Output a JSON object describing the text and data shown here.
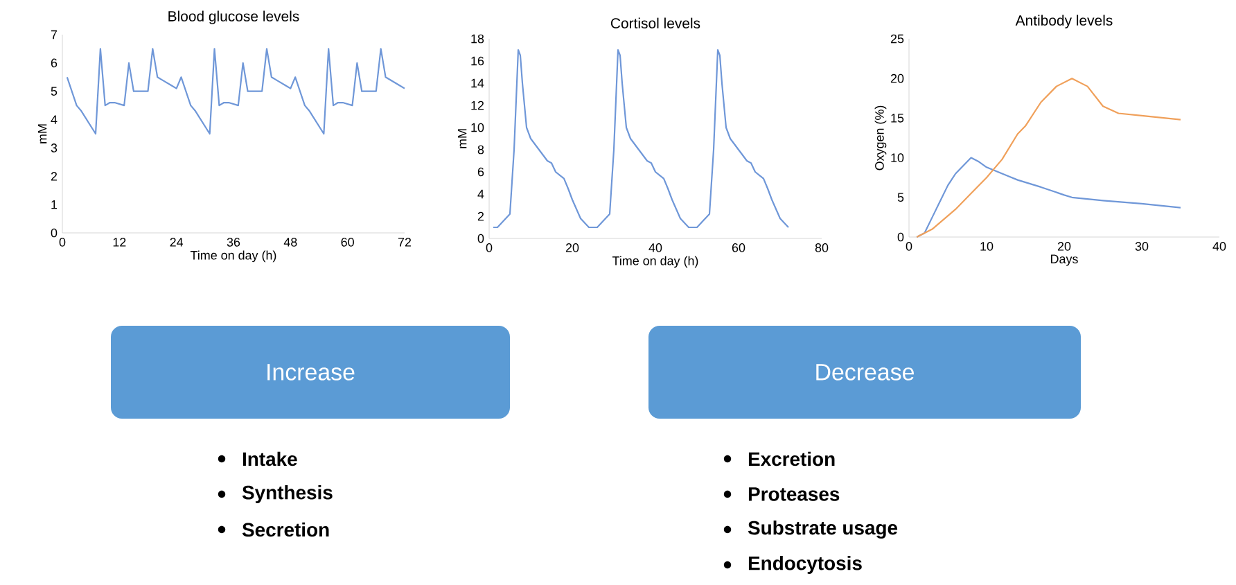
{
  "chart_data": [
    {
      "type": "line",
      "title": "Blood glucose levels",
      "xlabel": "Time on day (h)",
      "ylabel": "mM",
      "xlim": [
        0,
        72
      ],
      "xticks": [
        0,
        12,
        24,
        36,
        48,
        60,
        72
      ],
      "ylim": [
        0,
        7
      ],
      "yticks": [
        0,
        1,
        2,
        3,
        4,
        5,
        6,
        7
      ],
      "series": [
        {
          "color": "#6f97d8",
          "x": [
            1,
            3,
            4,
            7,
            8,
            9,
            10,
            11,
            13,
            14,
            15,
            18,
            19,
            20,
            21,
            23,
            24,
            25,
            27,
            28,
            31,
            32,
            33,
            34,
            35,
            37,
            38,
            39,
            42,
            43,
            44,
            45,
            47,
            48,
            49,
            51,
            52,
            55,
            56,
            57,
            58,
            59,
            61,
            62,
            63,
            66,
            67,
            68,
            69,
            71,
            72
          ],
          "values": [
            5.5,
            4.5,
            4.3,
            3.5,
            6.5,
            4.5,
            4.6,
            4.6,
            4.5,
            6.0,
            5.0,
            5.0,
            6.5,
            5.5,
            5.4,
            5.2,
            5.1,
            5.5,
            4.5,
            4.3,
            3.5,
            6.5,
            4.5,
            4.6,
            4.6,
            4.5,
            6.0,
            5.0,
            5.0,
            6.5,
            5.5,
            5.4,
            5.2,
            5.1,
            5.5,
            4.5,
            4.3,
            3.5,
            6.5,
            4.5,
            4.6,
            4.6,
            4.5,
            6.0,
            5.0,
            5.0,
            6.5,
            5.5,
            5.4,
            5.2,
            5.1
          ]
        }
      ]
    },
    {
      "type": "line",
      "title": "Cortisol levels",
      "xlabel": "Time on day (h)",
      "ylabel": "mM",
      "xlim": [
        0,
        80
      ],
      "xticks": [
        0,
        20,
        40,
        60,
        80
      ],
      "ylim": [
        0,
        18
      ],
      "yticks": [
        0,
        2,
        4,
        6,
        8,
        10,
        12,
        14,
        16,
        18
      ],
      "series": [
        {
          "color": "#6f97d8",
          "x": [
            1,
            2,
            5,
            6,
            7,
            7.5,
            8,
            9,
            10,
            12,
            14,
            15,
            16,
            17,
            18,
            19,
            20,
            22,
            24,
            26,
            29,
            30,
            31,
            31.5,
            32,
            33,
            34,
            36,
            38,
            39,
            40,
            41,
            42,
            43,
            44,
            46,
            48,
            50,
            53,
            54,
            55,
            55.5,
            56,
            57,
            58,
            60,
            62,
            63,
            64,
            65,
            66,
            67,
            68,
            70,
            72
          ],
          "values": [
            1,
            1,
            2.2,
            8,
            17,
            16.5,
            14,
            10,
            9,
            8,
            7,
            6.8,
            6,
            5.7,
            5.4,
            4.5,
            3.5,
            1.8,
            1,
            1,
            2.2,
            8,
            17,
            16.5,
            14,
            10,
            9,
            8,
            7,
            6.8,
            6,
            5.7,
            5.4,
            4.5,
            3.5,
            1.8,
            1,
            1,
            2.2,
            8,
            17,
            16.5,
            14,
            10,
            9,
            8,
            7,
            6.8,
            6,
            5.7,
            5.4,
            4.5,
            3.5,
            1.8,
            1
          ]
        }
      ]
    },
    {
      "type": "line",
      "title": "Antibody levels",
      "xlabel": "Days",
      "ylabel": "Oxygen (%)",
      "xlim": [
        0,
        40
      ],
      "xticks": [
        0,
        10,
        20,
        30,
        40
      ],
      "ylim": [
        0,
        25
      ],
      "yticks": [
        0,
        5,
        10,
        15,
        20,
        25
      ],
      "series": [
        {
          "color": "#6f97d8",
          "x": [
            1,
            2,
            3,
            4,
            5,
            6,
            7,
            8,
            9,
            10,
            12,
            14,
            17,
            20,
            21,
            25,
            30,
            35
          ],
          "values": [
            0,
            0.5,
            2.5,
            4.5,
            6.5,
            8,
            9,
            10,
            9.5,
            8.8,
            8,
            7.2,
            6.3,
            5.3,
            5,
            4.6,
            4.2,
            3.7
          ]
        },
        {
          "color": "#f0a05a",
          "x": [
            1,
            3,
            6,
            8,
            10,
            12,
            14,
            15,
            17,
            19,
            21,
            23,
            25,
            27,
            30,
            35
          ],
          "values": [
            0,
            1,
            3.5,
            5.5,
            7.5,
            9.8,
            13,
            14,
            17,
            19,
            20,
            19,
            16.5,
            15.6,
            15.3,
            14.8
          ]
        }
      ]
    },
    {
      "type": "other",
      "title": "Increase",
      "color": "#5b9bd5",
      "annotations": [
        "Intake",
        "Synthesis",
        "Secretion"
      ]
    },
    {
      "type": "other",
      "title": "Decrease",
      "color": "#5b9bd5",
      "annotations": [
        "Excretion",
        "Proteases",
        "Substrate usage",
        "Endocytosis"
      ]
    }
  ]
}
